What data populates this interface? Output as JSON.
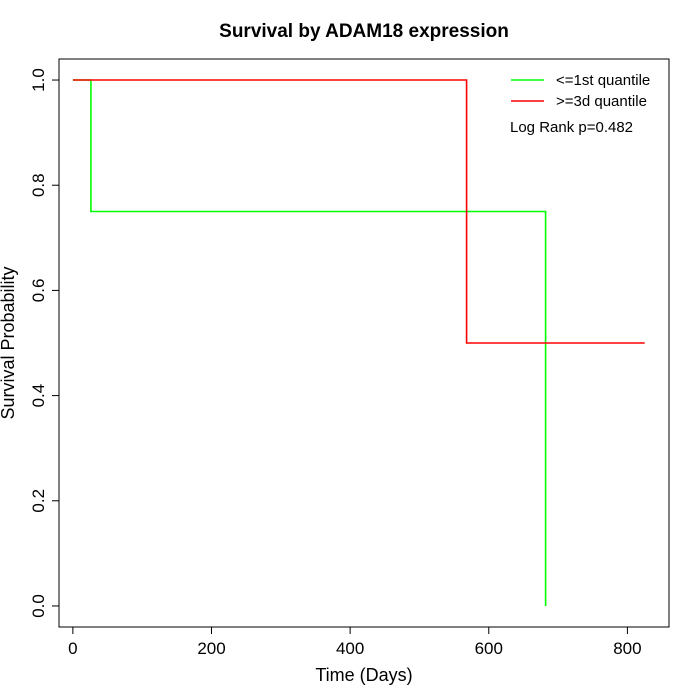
{
  "chart_data": {
    "type": "line",
    "title": "Survival by ADAM18 expression",
    "xlabel": "Time (Days)",
    "ylabel": "Survival Probability",
    "xlim": [
      -20,
      860
    ],
    "ylim": [
      -0.04,
      1.04
    ],
    "xticks": [
      0,
      200,
      400,
      600,
      800
    ],
    "yticks": [
      0.0,
      0.2,
      0.4,
      0.6,
      0.8,
      1.0
    ],
    "ytick_labels": [
      "0.0",
      "0.2",
      "0.4",
      "0.6",
      "0.8",
      "1.0"
    ],
    "grid": false,
    "legend_position": "top-right",
    "annotation": "Log Rank p=0.482",
    "series": [
      {
        "name": "<=1st quantile",
        "color": "#00ff00",
        "step": true,
        "x": [
          0,
          26,
          26,
          682,
          682
        ],
        "y": [
          1.0,
          1.0,
          0.75,
          0.75,
          0.0
        ]
      },
      {
        "name": ">=3d quantile",
        "color": "#ff0000",
        "step": true,
        "x": [
          0,
          568,
          568,
          825
        ],
        "y": [
          1.0,
          1.0,
          0.5,
          0.5
        ]
      }
    ]
  }
}
